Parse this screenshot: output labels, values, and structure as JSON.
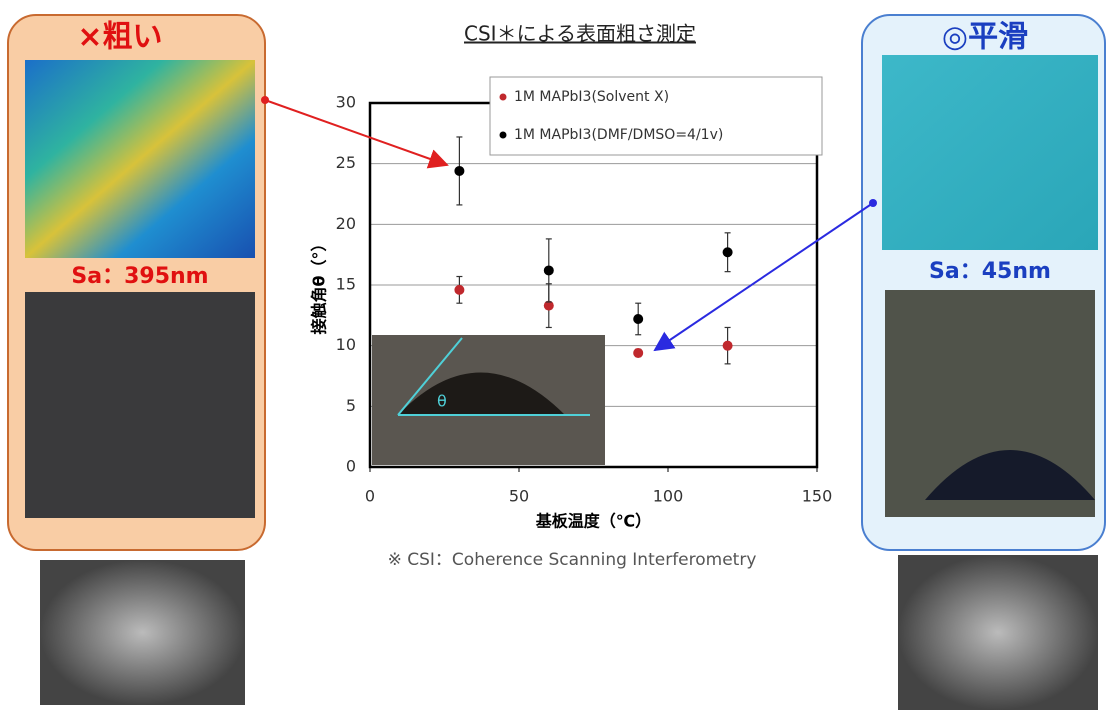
{
  "chart_data": {
    "type": "scatter",
    "title": "CSI＊による表面粗さ測定",
    "x_label": "基板温度（℃）",
    "y_label": "接触角θ（°）",
    "x": [
      30,
      60,
      90,
      120
    ],
    "series": [
      {
        "name": "1M MAPbI3(Solvent X)",
        "color": "#c0282d",
        "values": [
          14.6,
          13.3,
          9.4,
          10.0
        ],
        "errors": [
          1.1,
          1.8,
          0.3,
          1.5
        ]
      },
      {
        "name": "1M MAPbI3(DMF/DMSO=4/1v)",
        "color": "#000000",
        "values": [
          24.4,
          16.2,
          12.2,
          17.7
        ],
        "errors": [
          2.8,
          2.6,
          1.3,
          1.6
        ]
      }
    ],
    "xlim": [
      0,
      150
    ],
    "xticks": [
      0,
      50,
      100,
      150
    ],
    "ylim": [
      0,
      30
    ],
    "yticks": [
      0,
      5,
      10,
      15,
      20,
      25,
      30
    ],
    "grid": true,
    "inset_label": "θ",
    "footnote": "※ CSI：Coherence Scanning Interferometry"
  },
  "left_panel": {
    "label": "×粗い",
    "sa": "Sa：395nm"
  },
  "right_panel": {
    "label": "◎平滑",
    "sa": "Sa：45nm"
  }
}
